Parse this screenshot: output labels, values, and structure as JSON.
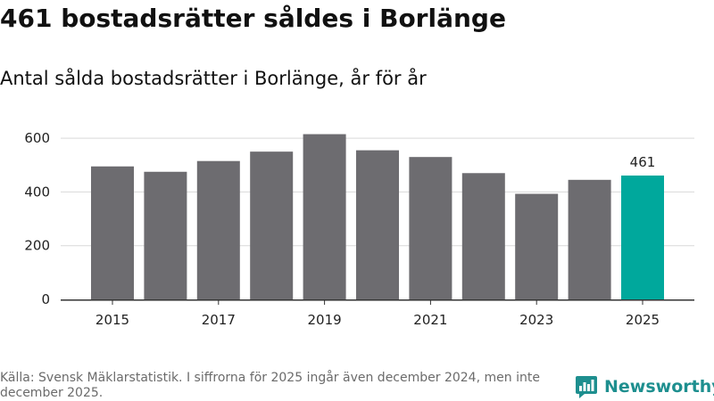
{
  "header": {
    "title": "461 bostadsrätter såldes i Borlänge",
    "subtitle": "Antal sålda bostadsrätter i Borlänge, år för år"
  },
  "chart_data": {
    "type": "bar",
    "categories": [
      "2015",
      "2016",
      "2017",
      "2018",
      "2019",
      "2020",
      "2021",
      "2022",
      "2023",
      "2024",
      "2025"
    ],
    "values": [
      495,
      475,
      515,
      550,
      615,
      555,
      530,
      470,
      393,
      445,
      461
    ],
    "x_tick_labels": [
      "2015",
      "2017",
      "2019",
      "2021",
      "2023",
      "2025"
    ],
    "y_ticks": [
      0,
      200,
      400,
      600
    ],
    "ylim": [
      0,
      650
    ],
    "grid": true,
    "bar_color": "#6d6c70",
    "highlight_color": "#00a89c",
    "highlight_index": 10,
    "data_labels": [
      {
        "index": 10,
        "text": "461"
      }
    ],
    "title": "461 bostadsrätter såldes i Borlänge",
    "subtitle": "Antal sålda bostadsrätter i Borlänge, år för år",
    "xlabel": "",
    "ylabel": ""
  },
  "footer": {
    "source": "Källa: Svensk Mäklarstatistik. I siffrorna för 2025 ingår även december 2024, men inte december 2025."
  },
  "brand": {
    "name": "Newsworthy",
    "icon": "newsworthy-logo-icon",
    "color": "#1e8f8f"
  }
}
